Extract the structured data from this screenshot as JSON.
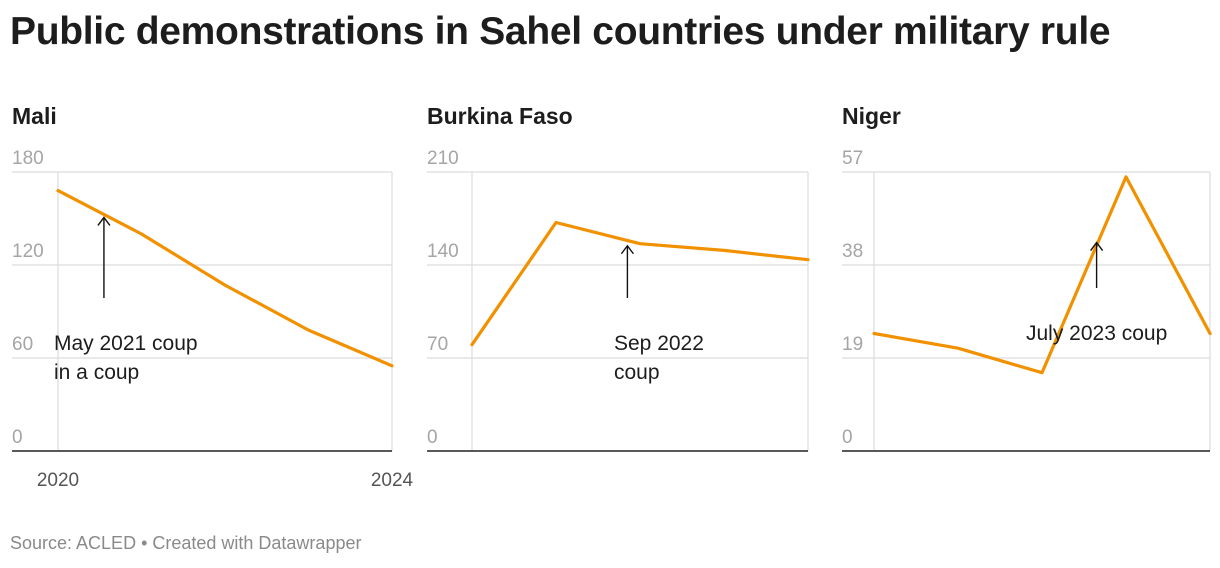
{
  "title": "Public demonstrations in Sahel countries under military rule",
  "source": "Source: ACLED • Created with Datawrapper",
  "colors": {
    "line": "#f29100",
    "grid": "#dcdcdc",
    "axis": "#222222",
    "tick": "#a5a5a5"
  },
  "chart_data": [
    {
      "type": "line",
      "title": "Mali",
      "x": [
        2020,
        2021,
        2022,
        2023,
        2024
      ],
      "values": [
        168,
        140,
        107,
        78,
        55
      ],
      "ylim": [
        0,
        180
      ],
      "yticks": [
        "0",
        "60",
        "120",
        "180"
      ],
      "xticks": [
        "2020",
        "2024"
      ],
      "grid": true,
      "annotation": {
        "lines": [
          "May 2021 coup",
          "in a coup"
        ],
        "x": 2020.55,
        "y": 152
      }
    },
    {
      "type": "line",
      "title": "Burkina Faso",
      "x": [
        2020,
        2021,
        2022,
        2023,
        2024
      ],
      "values": [
        80,
        172,
        156,
        151,
        144
      ],
      "ylim": [
        0,
        210
      ],
      "yticks": [
        "0",
        "70",
        "140",
        "210"
      ],
      "xticks": [],
      "grid": true,
      "annotation": {
        "lines": [
          "Sep 2022",
          "coup"
        ],
        "x": 2021.85,
        "y": 156
      }
    },
    {
      "type": "line",
      "title": "Niger",
      "x": [
        2020,
        2021,
        2022,
        2023,
        2024
      ],
      "values": [
        24,
        21,
        16,
        56,
        24
      ],
      "ylim": [
        0,
        57
      ],
      "yticks": [
        "0",
        "19",
        "38",
        "57"
      ],
      "xticks": [],
      "grid": true,
      "annotation": {
        "lines": [
          "July 2023 coup"
        ],
        "x": 2022.65,
        "y": 43
      }
    }
  ]
}
